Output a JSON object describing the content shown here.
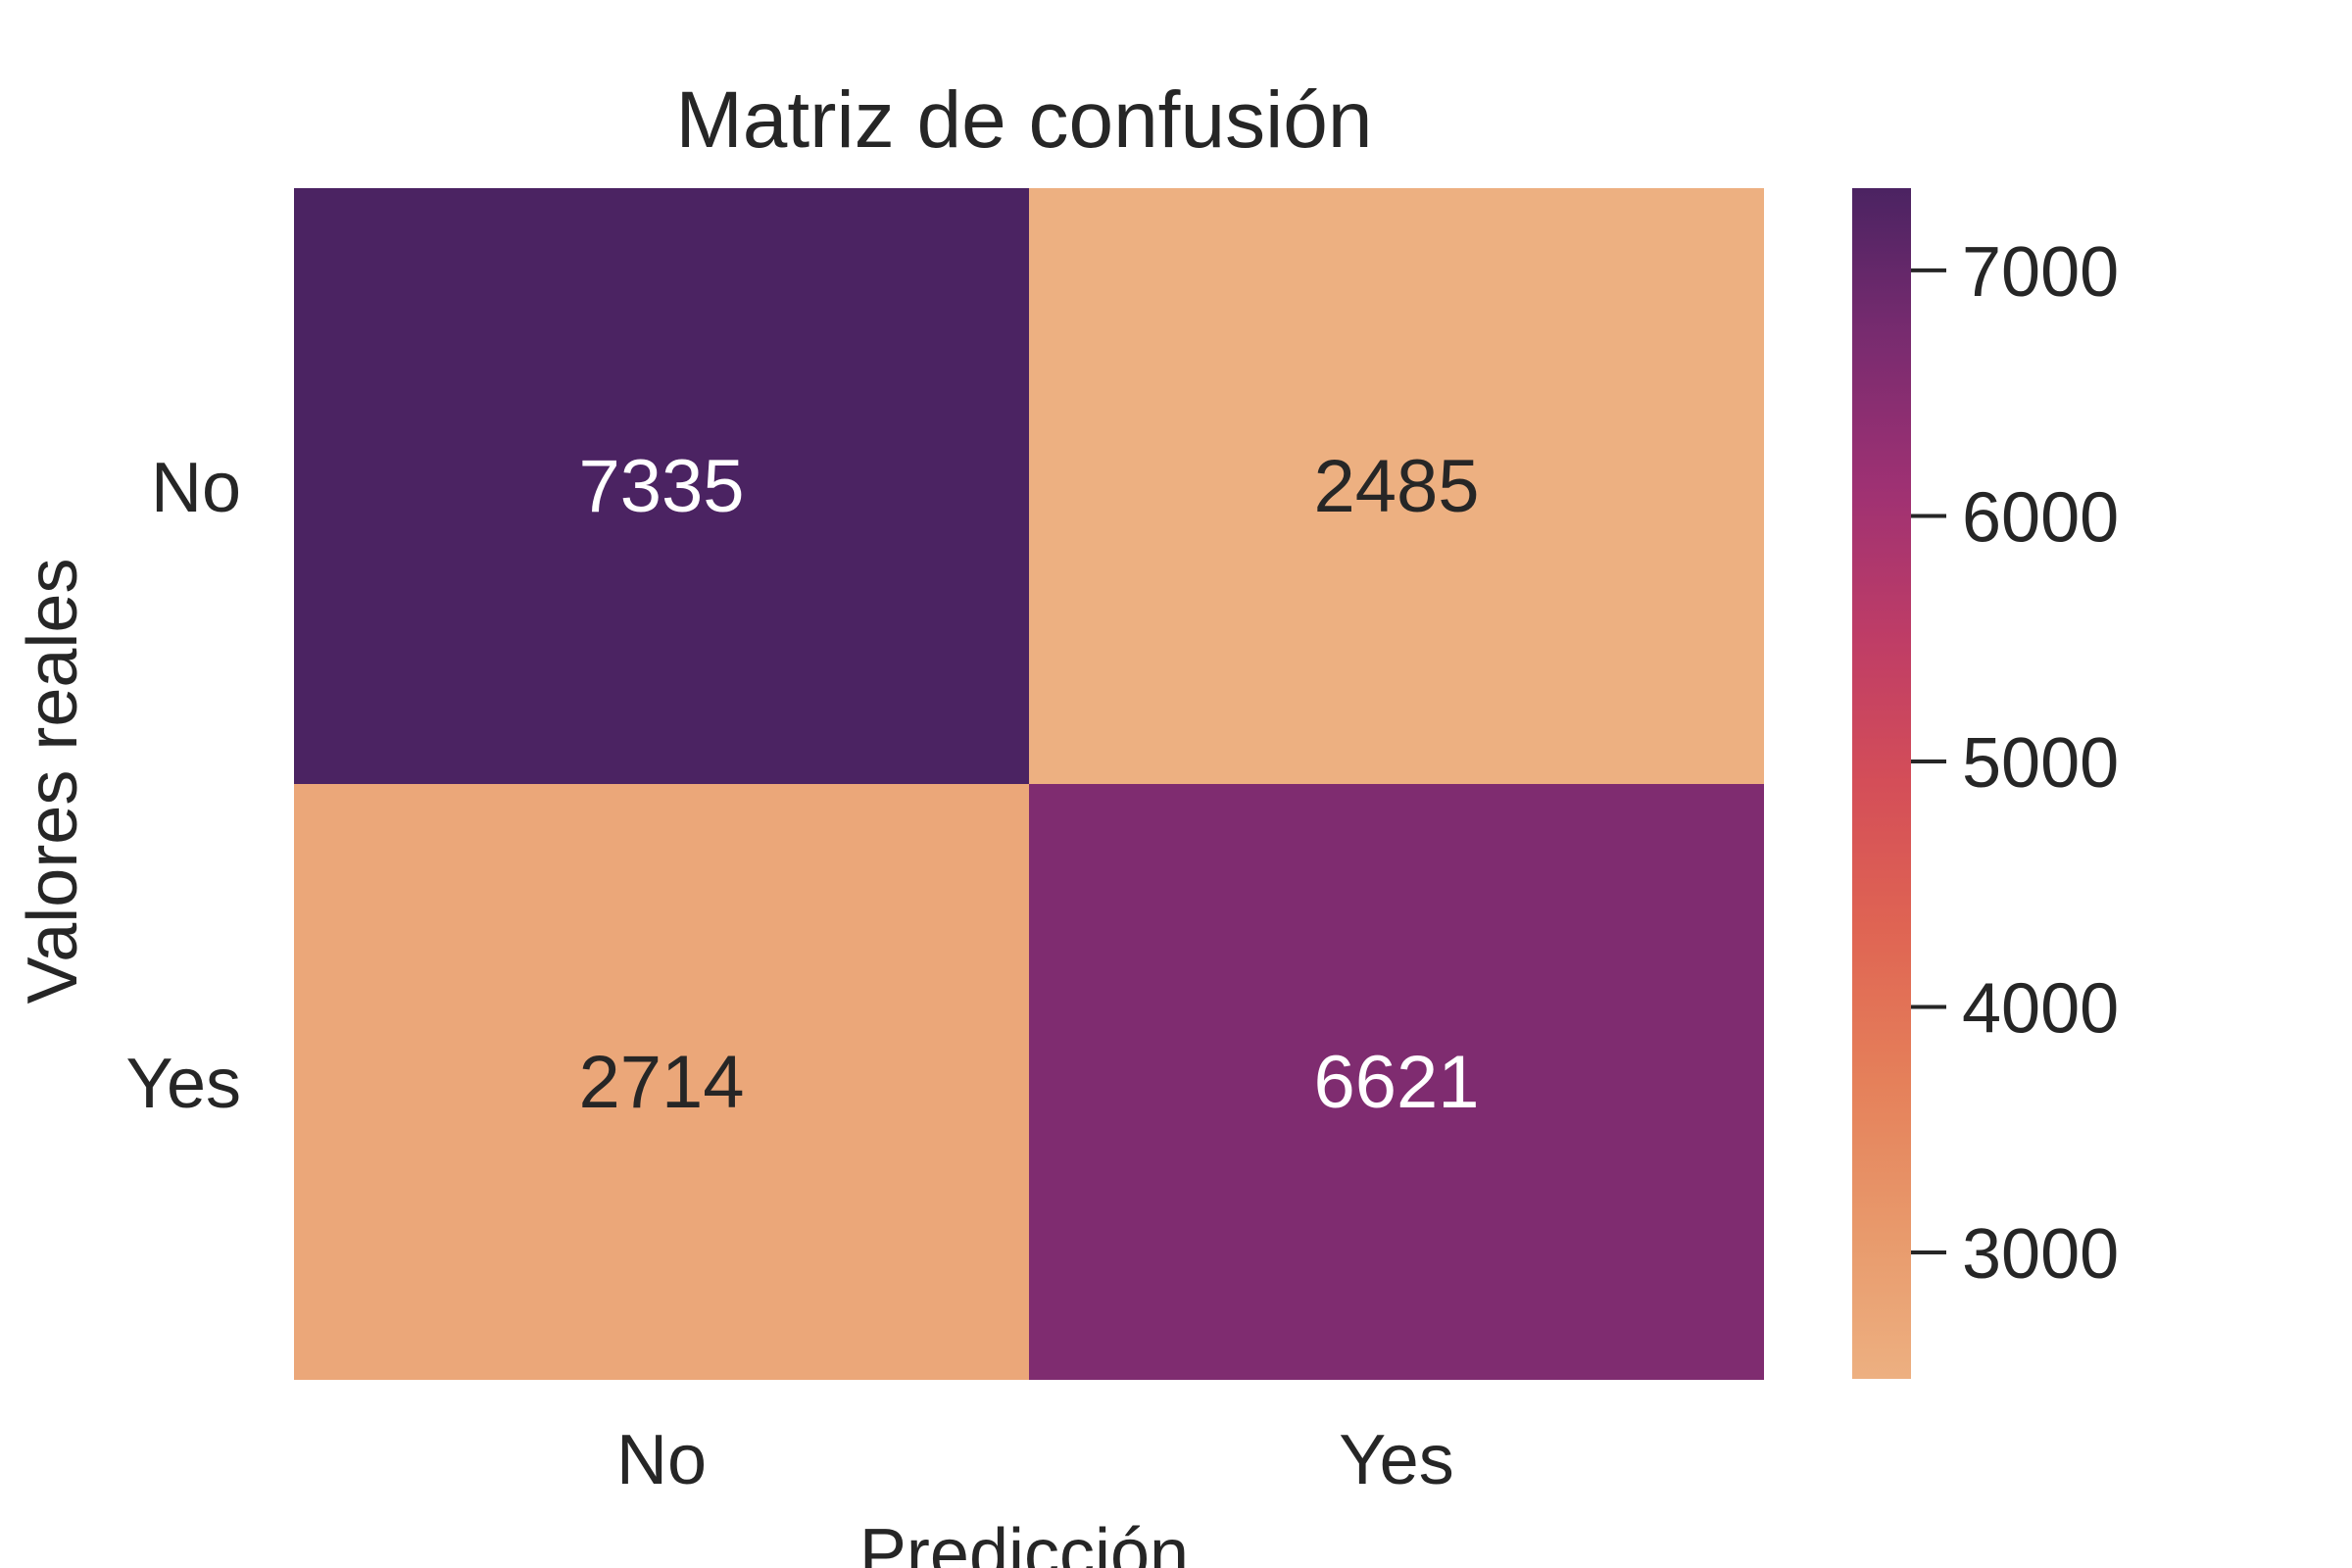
{
  "chart_data": {
    "type": "heatmap",
    "title": "Matriz de confusión",
    "xlabel": "Predicción",
    "ylabel": "Valores reales",
    "x_categories": [
      "No",
      "Yes"
    ],
    "y_categories": [
      "No",
      "Yes"
    ],
    "values": [
      [
        7335,
        2485
      ],
      [
        2714,
        6621
      ]
    ],
    "value_labels": [
      [
        "7335",
        "2485"
      ],
      [
        "2714",
        "6621"
      ]
    ],
    "colorbar": {
      "min": 2485,
      "max": 7335,
      "ticks": [
        3000,
        4000,
        5000,
        6000,
        7000
      ],
      "tick_labels": [
        "3000",
        "4000",
        "5000",
        "6000",
        "7000"
      ]
    },
    "colormap": "flare",
    "colors": {
      "text": "#262626",
      "annotation_light": "#ffffff",
      "annotation_dark": "#262626",
      "low": "#edb081",
      "high": "#4b2362"
    }
  }
}
